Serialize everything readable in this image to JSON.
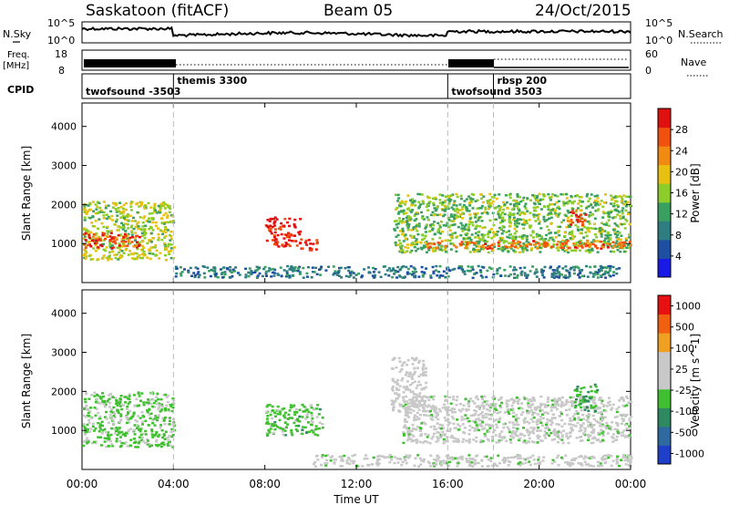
{
  "header": {
    "station": "Saskatoon (fitACF)",
    "beam": "Beam 05",
    "date": "24/Oct/2015"
  },
  "noise_panel": {
    "left_label": "N.Sky",
    "right_label": "N.Search",
    "left_ticks": [
      "10^5",
      "10^0"
    ],
    "right_ticks": [
      "10^5",
      "10^0"
    ]
  },
  "freq_panel": {
    "left_label_1": "Freq.",
    "left_label_2": "[MHz]",
    "right_label": "Nave",
    "left_ticks": [
      "18",
      "8"
    ],
    "right_ticks": [
      "60",
      "0"
    ]
  },
  "cpid_panel": {
    "label": "CPID",
    "segments": [
      {
        "name": "twofsound -3503",
        "start_hour": 0,
        "end_hour": 4
      },
      {
        "name": "themis 3300",
        "start_hour": 4,
        "end_hour": 16
      },
      {
        "name": "twofsound 3503",
        "start_hour": 16,
        "end_hour": 18
      },
      {
        "name": "rbsp 200",
        "start_hour": 18,
        "end_hour": 24
      }
    ]
  },
  "colors": {
    "power_scale": [
      "#1a1ae6",
      "#1f4fa0",
      "#2e7d80",
      "#3aa060",
      "#8ccd2a",
      "#e8c010",
      "#f08a10",
      "#f05010",
      "#e01010"
    ],
    "velocity_scale": [
      "#1e3fc8",
      "#2e6aa0",
      "#2e8860",
      "#40c030",
      "#c8c8c8",
      "#c8c8c8",
      "#f0a020",
      "#f06010",
      "#e81010"
    ]
  },
  "chart_data": [
    {
      "type": "heatmap",
      "panel": "power",
      "ylabel": "Slant Range [km]",
      "yticks": [
        "1000",
        "2000",
        "3000",
        "4000"
      ],
      "ylim": [
        0,
        4600
      ],
      "xlim": [
        0,
        24
      ],
      "xticks": [
        "00:00",
        "04:00",
        "08:00",
        "12:00",
        "16:00",
        "20:00",
        "00:00"
      ],
      "colorbar": {
        "label": "Power [dB]",
        "ticks": [
          "4",
          "8",
          "12",
          "16",
          "20",
          "24",
          "28"
        ],
        "range": [
          0,
          30
        ]
      },
      "echo_regions": [
        {
          "t0": 0,
          "t1": 4,
          "r0": 600,
          "r1": 2100,
          "value": 16
        },
        {
          "t0": 0,
          "t1": 2.5,
          "r0": 900,
          "r1": 1300,
          "value": 26
        },
        {
          "t0": 4,
          "t1": 23.5,
          "r0": 150,
          "r1": 450,
          "value": 8
        },
        {
          "t0": 8,
          "t1": 9.5,
          "r0": 950,
          "r1": 1700,
          "value": 28
        },
        {
          "t0": 9.5,
          "t1": 10.3,
          "r0": 850,
          "r1": 1150,
          "value": 28
        },
        {
          "t0": 13.6,
          "t1": 24,
          "r0": 800,
          "r1": 2300,
          "value": 14
        },
        {
          "t0": 15,
          "t1": 24,
          "r0": 900,
          "r1": 1100,
          "value": 24
        },
        {
          "t0": 21.2,
          "t1": 22,
          "r0": 1500,
          "r1": 1900,
          "value": 26
        }
      ]
    },
    {
      "type": "heatmap",
      "panel": "velocity",
      "ylabel": "Slant Range [km]",
      "yticks": [
        "1000",
        "2000",
        "3000",
        "4000"
      ],
      "ylim": [
        0,
        4600
      ],
      "xlim": [
        0,
        24
      ],
      "xticks": [
        "00:00",
        "04:00",
        "08:00",
        "12:00",
        "16:00",
        "20:00",
        "00:00"
      ],
      "xlabel": "Time UT",
      "colorbar": {
        "label": "Velocity [m s^-1]",
        "ticks": [
          "1000",
          "500",
          "100",
          "25",
          "-25",
          "-100",
          "-500",
          "-1000"
        ],
        "range": [
          -1000,
          1000
        ]
      },
      "echo_regions": [
        {
          "t0": 0,
          "t1": 4,
          "r0": 600,
          "r1": 2000,
          "value": -150
        },
        {
          "t0": 14,
          "t1": 24,
          "r0": 700,
          "r1": 1900,
          "value": 0
        },
        {
          "t0": 10,
          "t1": 24,
          "r0": 100,
          "r1": 400,
          "value": 0
        },
        {
          "t0": 13.5,
          "t1": 15,
          "r0": 1500,
          "r1": 2900,
          "value": 50
        },
        {
          "t0": 21.5,
          "t1": 22.5,
          "r0": 1500,
          "r1": 2200,
          "value": -300
        },
        {
          "t0": 8,
          "t1": 10.5,
          "r0": 900,
          "r1": 1700,
          "value": -200
        }
      ]
    }
  ]
}
